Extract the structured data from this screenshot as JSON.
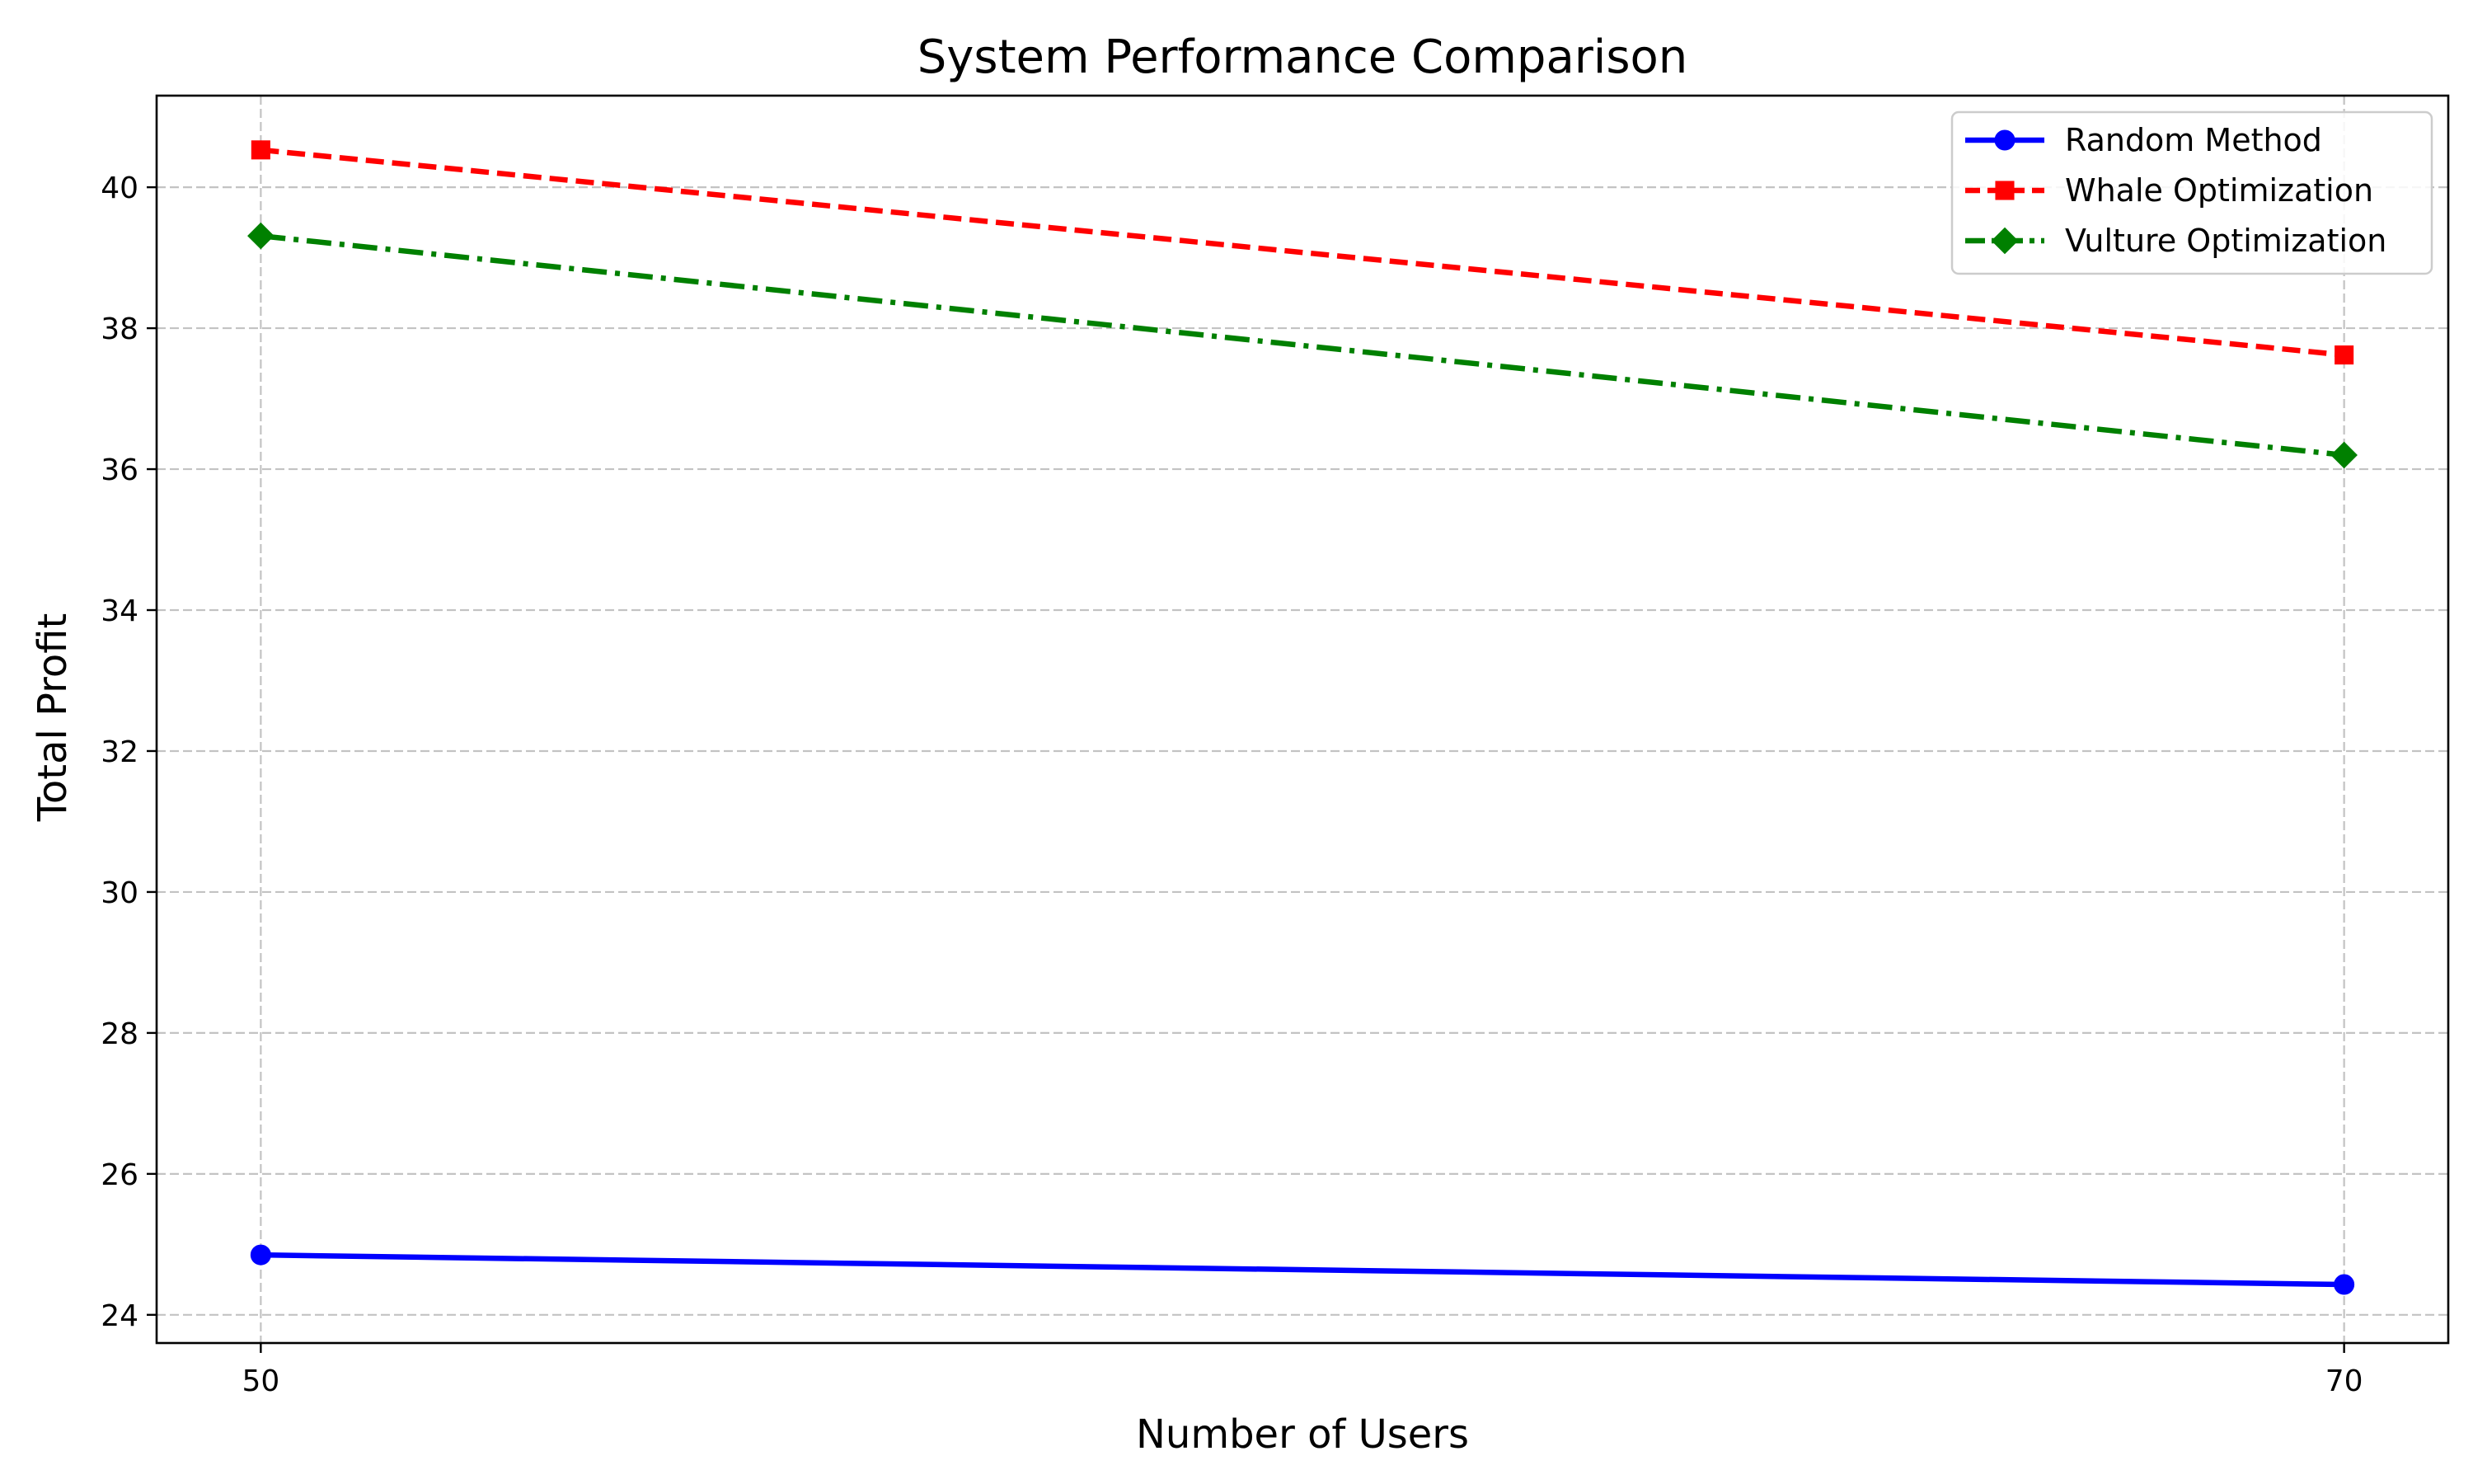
{
  "chart_data": {
    "type": "line",
    "title": "System Performance Comparison",
    "xlabel": "Number of Users",
    "ylabel": "Total Profit",
    "x": [
      50,
      70
    ],
    "xticks": [
      50,
      70
    ],
    "xlim": [
      49,
      71
    ],
    "yticks": [
      24,
      26,
      28,
      30,
      32,
      34,
      36,
      38,
      40
    ],
    "ylim": [
      23.6,
      41.3
    ],
    "grid": true,
    "legend_position": "top-right",
    "series": [
      {
        "name": "Random Method",
        "values": [
          24.85,
          24.43
        ],
        "color": "#0000ff",
        "linestyle": "solid",
        "marker": "circle"
      },
      {
        "name": "Whale Optimization",
        "values": [
          40.53,
          37.62
        ],
        "color": "#ff0000",
        "linestyle": "dashed",
        "marker": "square"
      },
      {
        "name": "Vulture Optimization",
        "values": [
          39.31,
          36.2
        ],
        "color": "#008000",
        "linestyle": "dashdot",
        "marker": "diamond"
      }
    ]
  }
}
